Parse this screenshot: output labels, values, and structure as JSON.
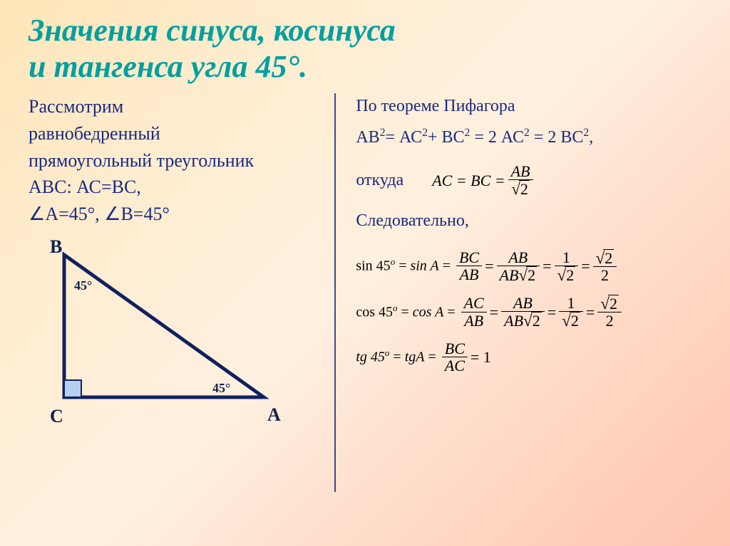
{
  "title_color": "#00a0a0",
  "body_text_color": "#1a2a80",
  "title_line1": "Значения синуса, косинуса",
  "title_line2": "и тангенса угла 45°.",
  "left": {
    "l1": "Рассмотрим",
    "l2": "равнобедренный",
    "l3": "прямоугольный треугольник",
    "l4": "АВС: АС=ВС,",
    "l5_a": "А=45°, ",
    "l5_b": "В=45°"
  },
  "triangle": {
    "B": "В",
    "C": "С",
    "A": "А",
    "ang1": "45°",
    "ang2": "45°",
    "stroke": "#102060",
    "sq_fill": "#b8d0f0"
  },
  "right": {
    "line1": "По теореме Пифагора",
    "line2_html": "АВ<sup>2</sup>= АС<sup>2</sup>+ ВС<sup>2</sup> = 2 АС<sup>2</sup> = 2 ВС<sup>2</sup>,",
    "whence": "откуда",
    "therefore": "Следовательно,",
    "eq_acbc_lhs": "AC = BC =",
    "eq_acbc_num": "AB",
    "eq_acbc_den_rad": "2",
    "sin45": "sin 45",
    "cos45": "cos 45",
    "tg45": "tg 45",
    "deg_o": "o",
    "eq": " = ",
    "sinA": "sin A",
    "cosA": "cos A",
    "tgA": "tgA",
    "BC": "BC",
    "AC": "AC",
    "AB": "AB",
    "ABr2": "AB",
    "one": "1",
    "two": "2",
    "r2": "2",
    "equals1": " = 1"
  }
}
